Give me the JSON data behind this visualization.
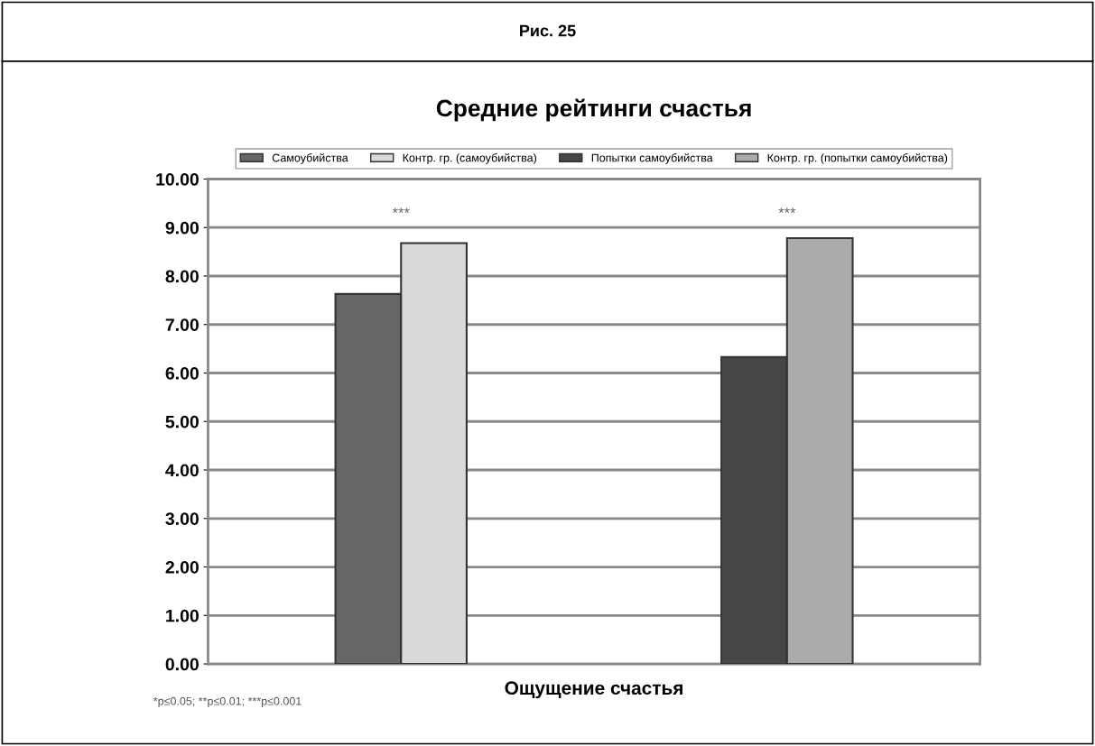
{
  "chart_data": {
    "type": "bar",
    "title": "Рис. 25",
    "subtitle": "Средние рейтинги счастья",
    "xlabel": "Ощущение счастья",
    "categories": [
      null,
      null
    ],
    "series": [
      {
        "name": "Самоубийства",
        "color": "#666666",
        "values": [
          7.63,
          null
        ]
      },
      {
        "name": "Контр. гр. (самоубийства)",
        "color": "#d9d9d9",
        "values": [
          8.68,
          null
        ]
      },
      {
        "name": "Попытки самоубийства",
        "color": "#474747",
        "values": [
          null,
          6.33
        ]
      },
      {
        "name": "Контр. гр. (попытки самоубийства)",
        "color": "#ababab",
        "values": [
          null,
          8.78
        ]
      }
    ],
    "ylim": [
      0,
      10
    ],
    "yticks": [
      {
        "value": 0,
        "label": "0.00"
      },
      {
        "value": 1,
        "label": "1.00"
      },
      {
        "value": 2,
        "label": "2.00"
      },
      {
        "value": 3,
        "label": "3.00"
      },
      {
        "value": 4,
        "label": "4.00"
      },
      {
        "value": 5,
        "label": "5.00"
      },
      {
        "value": 6,
        "label": "6.00"
      },
      {
        "value": 7,
        "label": "7.00"
      },
      {
        "value": 8,
        "label": "8.00"
      },
      {
        "value": 9,
        "label": "9.00"
      },
      {
        "value": 10,
        "label": "10.00"
      }
    ],
    "grid": "y",
    "legend": "top",
    "annotations": [
      "***",
      "***",
      "*p≤0.05; **p≤0.01; ***p≤0.001"
    ]
  }
}
